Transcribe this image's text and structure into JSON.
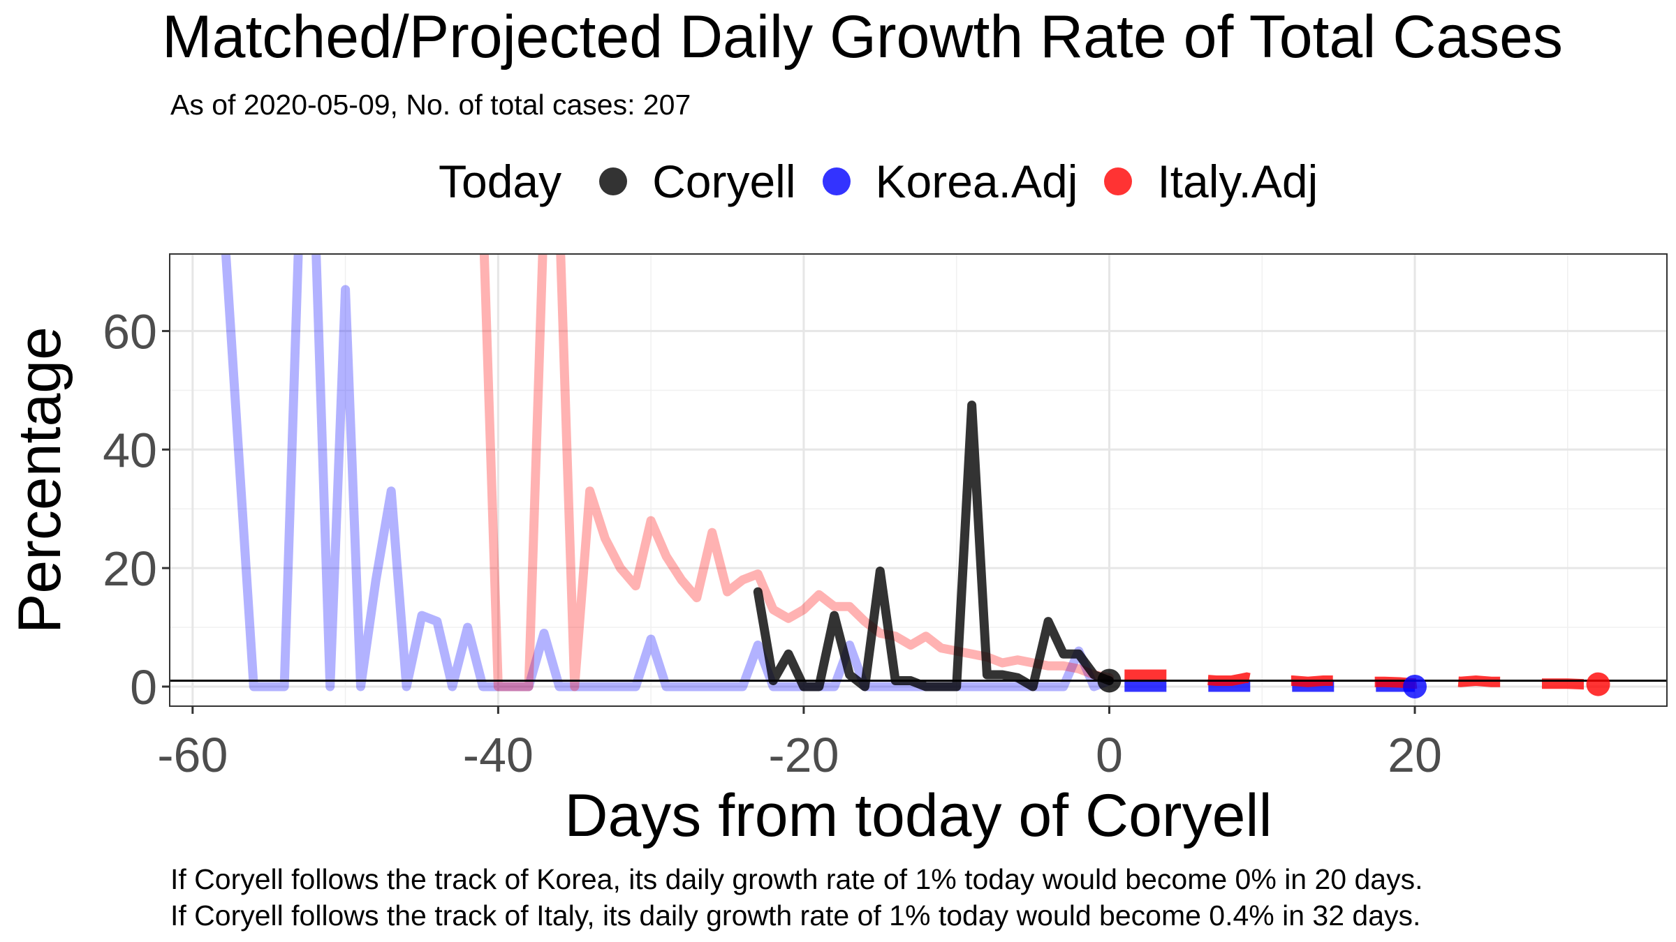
{
  "chart_data": {
    "type": "line",
    "title": "Matched/Projected Daily Growth Rate of Total Cases",
    "subtitle": "As of 2020-05-09, No. of total cases: 207",
    "xlabel": "Days from today of Coryell",
    "ylabel": "Percentage",
    "xlim": [
      -61.5,
      36.5
    ],
    "ylim": [
      -3.3,
      73
    ],
    "x_ticks": [
      -60,
      -40,
      -20,
      0,
      20
    ],
    "y_ticks": [
      0,
      20,
      40,
      60
    ],
    "grid": true,
    "legend": {
      "title": "Today",
      "position": "top",
      "entries": [
        {
          "label": "Coryell",
          "color": "#000000"
        },
        {
          "label": "Korea.Adj",
          "color": "#0000ff"
        },
        {
          "label": "Italy.Adj",
          "color": "#ff0000"
        }
      ]
    },
    "reference_line_y": 1,
    "series": [
      {
        "name": "Coryell",
        "color": "#000000",
        "style": "history",
        "x": [
          -23,
          -22,
          -21,
          -20,
          -19,
          -18,
          -17,
          -16,
          -15,
          -14,
          -13,
          -12,
          -11,
          -10,
          -9,
          -8,
          -7,
          -6,
          -5,
          -4,
          -3,
          -2,
          -1,
          0
        ],
        "y": [
          16,
          1,
          5.5,
          0,
          0,
          12,
          2,
          0,
          19.5,
          1,
          1,
          0,
          0,
          0,
          47.5,
          2,
          2,
          1.5,
          0,
          11,
          5.5,
          5.5,
          2,
          1
        ]
      },
      {
        "name": "Korea.Adj",
        "color": "#0000ff",
        "style": "history",
        "x": [
          -58,
          -56,
          -55,
          -54,
          -53,
          -52,
          -51,
          -50,
          -49,
          -48,
          -47,
          -46,
          -45,
          -44,
          -43,
          -42,
          -41,
          -40,
          -39,
          -38,
          -37,
          -36,
          -35,
          -34,
          -33,
          -32,
          -31,
          -30,
          -29,
          -28,
          -27,
          -26,
          -25,
          -24,
          -23,
          -22,
          -21,
          -20,
          -19,
          -18,
          -17,
          -16,
          -15,
          -14,
          -13,
          -12,
          -11,
          -10,
          -9,
          -8,
          -7,
          -6,
          -5,
          -4,
          -3,
          -2,
          -1,
          0
        ],
        "y": [
          80,
          0,
          0,
          0,
          80,
          80,
          0,
          67,
          0,
          18,
          33,
          0,
          12,
          11,
          0,
          10,
          0,
          0,
          0,
          0,
          9,
          0,
          0,
          0,
          0,
          0,
          0,
          8,
          0,
          0,
          0,
          0,
          0,
          0,
          7,
          0,
          0,
          0,
          0,
          0,
          7,
          0,
          0,
          0,
          0,
          0,
          0,
          0,
          0,
          0,
          0,
          0,
          0,
          0,
          0,
          6,
          0,
          1
        ]
      },
      {
        "name": "Italy.Adj",
        "color": "#ff0000",
        "style": "history",
        "x": [
          -41,
          -40,
          -39,
          -38,
          -37,
          -36,
          -35,
          -34,
          -33,
          -32,
          -31,
          -30,
          -29,
          -28,
          -27,
          -26,
          -25,
          -24,
          -23,
          -22,
          -21,
          -20,
          -19,
          -18,
          -17,
          -16,
          -15,
          -14,
          -13,
          -12,
          -11,
          -10,
          -9,
          -8,
          -7,
          -6,
          -5,
          -4,
          -3,
          -2,
          -1,
          0
        ],
        "y": [
          80,
          0,
          0,
          0,
          80,
          80,
          0,
          33,
          25,
          20,
          17,
          28,
          22,
          18,
          15,
          26,
          16,
          18,
          19,
          13,
          11.5,
          13,
          15.5,
          13.5,
          13.5,
          11,
          9,
          8.5,
          7,
          8.5,
          6.5,
          6,
          5.5,
          5,
          4,
          4.5,
          4,
          3.5,
          3.5,
          3,
          2,
          1.5
        ]
      },
      {
        "name": "Korea.Adj",
        "color": "#0000ff",
        "style": "projection",
        "x": [
          1,
          2,
          3,
          4,
          5,
          6,
          7,
          8,
          9,
          10,
          11,
          12,
          13,
          14,
          15,
          16,
          17,
          18,
          19,
          20
        ],
        "y": [
          0,
          0,
          0,
          0,
          0,
          0,
          0,
          0,
          0,
          0,
          0,
          0,
          0,
          0,
          0,
          0,
          0,
          0,
          0,
          0
        ]
      },
      {
        "name": "Italy.Adj",
        "color": "#ff0000",
        "style": "projection",
        "x": [
          1,
          2,
          3,
          4,
          5,
          6,
          7,
          8,
          9,
          10,
          11,
          12,
          13,
          14,
          15,
          16,
          17,
          18,
          19,
          20,
          21,
          22,
          23,
          24,
          25,
          26,
          27,
          28,
          29,
          30,
          31,
          32
        ],
        "y": [
          2,
          2,
          2,
          2,
          1.5,
          1.2,
          1,
          1,
          1.5,
          1,
          1,
          1,
          0.8,
          1,
          1,
          1,
          0.8,
          0.8,
          0.7,
          0.5,
          0.8,
          1,
          0.8,
          1,
          0.8,
          0.8,
          0.5,
          0.5,
          0.5,
          0.5,
          0.4,
          0.4
        ]
      }
    ],
    "today_points": [
      {
        "name": "Coryell",
        "x": 0,
        "y": 1,
        "color": "#000000"
      },
      {
        "name": "Korea.Adj",
        "x": 20,
        "y": 0,
        "color": "#0000ff"
      },
      {
        "name": "Italy.Adj",
        "x": 32,
        "y": 0.4,
        "color": "#ff0000"
      }
    ],
    "annotations": [
      "If Coryell follows the track of Korea, its daily growth rate of 1% today would become 0% in 20 days.",
      "If Coryell follows the track of Italy, its daily growth rate of 1% today would become 0.4% in 32 days."
    ]
  }
}
